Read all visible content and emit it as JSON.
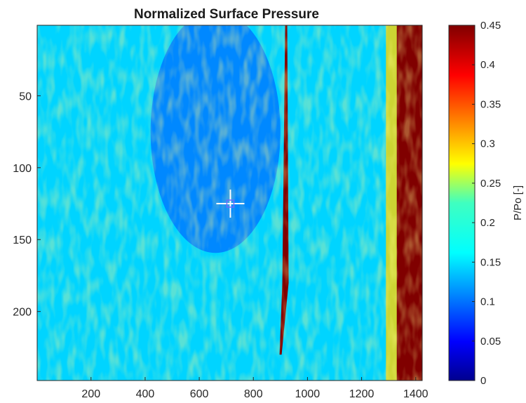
{
  "chart_data": {
    "type": "heatmap",
    "title": "Normalized Surface Pressure",
    "xlabel": "",
    "ylabel": "",
    "xlim": [
      1,
      1424
    ],
    "ylim": [
      1,
      248
    ],
    "y_reversed": true,
    "x_ticks": [
      200,
      400,
      600,
      800,
      1000,
      1200,
      1400
    ],
    "y_ticks": [
      50,
      100,
      150,
      200
    ],
    "grid": false,
    "colormap": "jet",
    "colorbar": {
      "label": "P/Po [-]",
      "range": [
        0,
        0.45
      ],
      "ticks": [
        "0",
        "0.05",
        "0.1",
        "0.15",
        "0.2",
        "0.25",
        "0.3",
        "0.35",
        "0.4",
        "0.45"
      ]
    },
    "field_description": {
      "background_value": 0.15,
      "low_pressure_region": {
        "x": [
          420,
          900
        ],
        "y": [
          1,
          150
        ],
        "value": 0.11
      },
      "high_pressure_band_x": [
        1330,
        1424
      ],
      "high_pressure_value": 0.45,
      "shock_streak": {
        "x": 920,
        "y": [
          1,
          230
        ],
        "value": 0.45
      }
    },
    "marker": {
      "type": "crosshair",
      "x": 715,
      "y": 125,
      "color": "#ffffff"
    }
  }
}
